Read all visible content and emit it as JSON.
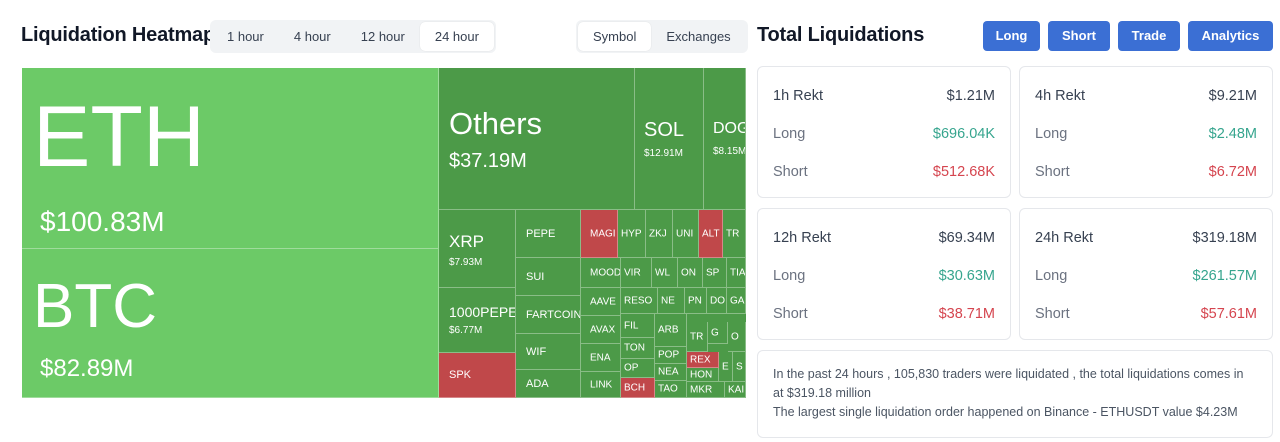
{
  "header": {
    "title": "Liquidation Heatmap",
    "time_options": [
      "1 hour",
      "4 hour",
      "12 hour",
      "24 hour"
    ],
    "active_time": "24 hour",
    "view_options": [
      "Symbol",
      "Exchanges"
    ],
    "active_view": "Symbol"
  },
  "totals": {
    "title": "Total Liquidations",
    "buttons": [
      "Long",
      "Short",
      "Trade",
      "Analytics"
    ],
    "accent_color": "#3b6fd4"
  },
  "heatmap": {
    "tiles": [
      {
        "symbol": "ETH",
        "value": "$100.83M",
        "color": "#6cca67"
      },
      {
        "symbol": "BTC",
        "value": "$82.89M",
        "color": "#6cca67"
      },
      {
        "symbol": "Others",
        "value": "$37.19M",
        "color": "#4c9a48"
      },
      {
        "symbol": "SOL",
        "value": "$12.91M",
        "color": "#4c9a48"
      },
      {
        "symbol": "DOG",
        "value": "$8.15M",
        "color": "#4c9a48"
      },
      {
        "symbol": "XRP",
        "value": "$7.93M",
        "color": "#4c9a48"
      },
      {
        "symbol": "1000PEPE",
        "value": "$6.77M",
        "color": "#4c9a48"
      },
      {
        "symbol": "SPK",
        "color": "#c0484a"
      },
      {
        "symbol": "PEPE"
      },
      {
        "symbol": "SUI"
      },
      {
        "symbol": "FARTCOIN"
      },
      {
        "symbol": "WIF"
      },
      {
        "symbol": "ADA"
      },
      {
        "symbol": "MAGI",
        "color": "#c0484a"
      },
      {
        "symbol": "MOOD"
      },
      {
        "symbol": "AAVE"
      },
      {
        "symbol": "AVAX"
      },
      {
        "symbol": "ENA"
      },
      {
        "symbol": "LINK"
      },
      {
        "symbol": "HYP"
      },
      {
        "symbol": "ZKJ"
      },
      {
        "symbol": "UNI"
      },
      {
        "symbol": "ALT",
        "color": "#c0484a"
      },
      {
        "symbol": "TR"
      },
      {
        "symbol": "VIR"
      },
      {
        "symbol": "WL"
      },
      {
        "symbol": "ON"
      },
      {
        "symbol": "SP"
      },
      {
        "symbol": "TIA"
      },
      {
        "symbol": "RESO"
      },
      {
        "symbol": "NE"
      },
      {
        "symbol": "PN"
      },
      {
        "symbol": "DO"
      },
      {
        "symbol": "GA"
      },
      {
        "symbol": "FIL"
      },
      {
        "symbol": "ARB"
      },
      {
        "symbol": "TR"
      },
      {
        "symbol": "G"
      },
      {
        "symbol": "O"
      },
      {
        "symbol": "TON"
      },
      {
        "symbol": "POP"
      },
      {
        "symbol": "OP"
      },
      {
        "symbol": "NEA"
      },
      {
        "symbol": "BCH",
        "color": "#c0484a"
      },
      {
        "symbol": "TAO"
      },
      {
        "symbol": "REX",
        "color": "#c0484a"
      },
      {
        "symbol": "HON"
      },
      {
        "symbol": "E"
      },
      {
        "symbol": "S"
      },
      {
        "symbol": "MKR"
      },
      {
        "symbol": "KAI"
      }
    ]
  },
  "cards": [
    {
      "period": "1h Rekt",
      "total": "$1.21M",
      "long_label": "Long",
      "long": "$696.04K",
      "short_label": "Short",
      "short": "$512.68K"
    },
    {
      "period": "4h Rekt",
      "total": "$9.21M",
      "long_label": "Long",
      "long": "$2.48M",
      "short_label": "Short",
      "short": "$6.72M"
    },
    {
      "period": "12h Rekt",
      "total": "$69.34M",
      "long_label": "Long",
      "long": "$30.63M",
      "short_label": "Short",
      "short": "$38.71M"
    },
    {
      "period": "24h Rekt",
      "total": "$319.18M",
      "long_label": "Long",
      "long": "$261.57M",
      "short_label": "Short",
      "short": "$57.61M"
    }
  ],
  "summary": {
    "line1": "In the past 24 hours , 105,830 traders were liquidated , the total liquidations comes in at $319.18 million",
    "line2": "The largest single liquidation order happened on Binance - ETHUSDT value $4.23M"
  }
}
